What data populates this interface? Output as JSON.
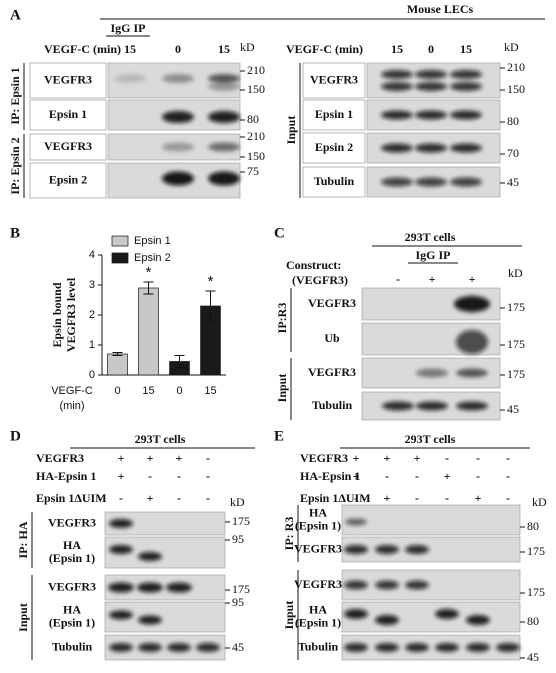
{
  "A": {
    "label": "A",
    "title": "Mouse LECs",
    "igg": "IgG IP",
    "left": {
      "condition": "VEGF-C (min)",
      "lanes": [
        "15",
        "0",
        "15"
      ],
      "kd": "kD",
      "groups": [
        {
          "ip": "IP: Epsin 1",
          "rows": [
            {
              "name": "VEGFR3",
              "markers": [
                210,
                150
              ]
            },
            {
              "name": "Epsin 1",
              "markers": [
                80
              ]
            }
          ]
        },
        {
          "ip": "IP: Epsin 2",
          "rows": [
            {
              "name": "VEGFR3",
              "markers": [
                210,
                150
              ]
            },
            {
              "name": "Epsin 2",
              "markers": [
                75
              ]
            }
          ]
        }
      ]
    },
    "right": {
      "condition": "VEGF-C (min)",
      "lanes": [
        "15",
        "0",
        "15"
      ],
      "kd": "kD",
      "group": "Input",
      "rows": [
        {
          "name": "VEGFR3",
          "markers": [
            210,
            150
          ]
        },
        {
          "name": "Epsin 1",
          "markers": [
            80
          ]
        },
        {
          "name": "Epsin 2",
          "markers": [
            70
          ]
        },
        {
          "name": "Tubulin",
          "markers": [
            45
          ]
        }
      ]
    }
  },
  "chart_data": {
    "type": "bar",
    "label": "B",
    "ylabel": [
      "Epsin bound",
      "VEGFR3 level"
    ],
    "xlabel": [
      "VEGF-C",
      "(min)"
    ],
    "categories": [
      "0",
      "15",
      "0",
      "15"
    ],
    "series": [
      {
        "name": "Epsin 1",
        "color": "#c8c8c8",
        "values": [
          0.7,
          2.9,
          null,
          null
        ],
        "errors": [
          0.05,
          0.2,
          null,
          null
        ]
      },
      {
        "name": "Epsin 2",
        "color": "#1a1a1a",
        "values": [
          null,
          null,
          0.45,
          2.3
        ],
        "errors": [
          null,
          null,
          0.2,
          0.5
        ]
      }
    ],
    "annotations": [
      "*",
      "*"
    ],
    "ylim": [
      0,
      4
    ],
    "yticks": [
      0,
      1,
      2,
      3,
      4
    ]
  },
  "C": {
    "label": "C",
    "cells": "293T cells",
    "igg": "IgG IP",
    "construct": [
      "Construct:",
      "(VEGFR3)"
    ],
    "lanes": [
      "-",
      "+",
      "+"
    ],
    "kd": "kD",
    "groups": [
      {
        "ip": "IP:R3",
        "rows": [
          {
            "name": "VEGFR3",
            "markers": [
              175
            ]
          },
          {
            "name": "Ub",
            "markers": [
              175
            ]
          }
        ]
      },
      {
        "ip": "Input",
        "rows": [
          {
            "name": "VEGFR3",
            "markers": [
              175
            ]
          },
          {
            "name": "Tubulin",
            "markers": [
              45
            ]
          }
        ]
      }
    ]
  },
  "D": {
    "label": "D",
    "cells": "293T cells",
    "kd": "kD",
    "conditions": [
      {
        "name": "VEGFR3",
        "signs": [
          "+",
          "+",
          "+",
          "-"
        ]
      },
      {
        "name": "HA-Epsin 1",
        "signs": [
          "+",
          "-",
          "-",
          "-"
        ]
      },
      {
        "name": "Epsin 1ΔUIM",
        "signs": [
          "-",
          "+",
          "-",
          "-"
        ]
      }
    ],
    "groups": [
      {
        "ip": "IP: HA",
        "rows": [
          {
            "name": [
              "VEGFR3"
            ],
            "markers": [
              175
            ]
          },
          {
            "name": [
              "HA",
              "(Epsin 1)"
            ],
            "markers": [
              95
            ]
          }
        ]
      },
      {
        "ip": "Input",
        "rows": [
          {
            "name": [
              "VEGFR3"
            ],
            "markers": [
              175
            ]
          },
          {
            "name": [
              "HA",
              "(Epsin 1)"
            ],
            "markers": [
              95
            ]
          },
          {
            "name": [
              "Tubulin"
            ],
            "markers": [
              45
            ]
          }
        ]
      }
    ]
  },
  "E": {
    "label": "E",
    "cells": "293T cells",
    "kd": "kD",
    "conditions": [
      {
        "name": "VEGFR3",
        "signs": [
          "+",
          "+",
          "+",
          "-",
          "-",
          "-"
        ]
      },
      {
        "name": "HA-Epsin 1",
        "signs": [
          "+",
          "-",
          "-",
          "+",
          "-",
          "-"
        ]
      },
      {
        "name": "Epsin 1ΔUIM",
        "signs": [
          "-",
          "+",
          "-",
          "-",
          "+",
          "-"
        ]
      }
    ],
    "groups": [
      {
        "ip": "IP: R3",
        "rows": [
          {
            "name": [
              "HA",
              "(Epsin 1)"
            ],
            "markers": [
              80
            ]
          },
          {
            "name": [
              "VEGFR3"
            ],
            "markers": [
              175
            ]
          }
        ]
      },
      {
        "ip": "Input",
        "rows": [
          {
            "name": [
              "VEGFR3"
            ],
            "markers": [
              175
            ]
          },
          {
            "name": [
              "HA",
              "(Epsin 1)"
            ],
            "markers": [
              80
            ]
          },
          {
            "name": [
              "Tubulin"
            ],
            "markers": [
              45
            ]
          }
        ]
      }
    ]
  }
}
